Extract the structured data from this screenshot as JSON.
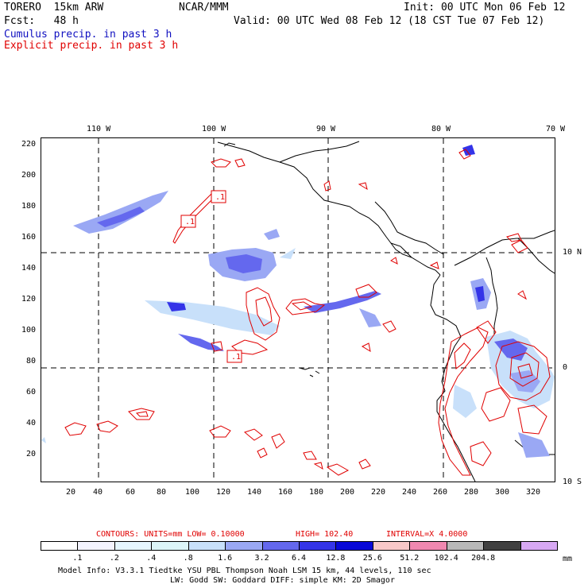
{
  "header": {
    "model": "TORERO  15km ARW",
    "org": "NCAR/MMM",
    "init": "Init: 00 UTC Mon 06 Feb 12",
    "fcst": "Fcst:   48 h",
    "valid": "Valid: 00 UTC Wed 08 Feb 12 (18 CST Tue 07 Feb 12)",
    "field1": "Cumulus precip. in past 3 h",
    "field2": "Explicit precip. in past 3 h"
  },
  "lon_labels": [
    "110 W",
    "100 W",
    "90 W",
    "80 W",
    "70 W"
  ],
  "lat_labels": [
    "10 N",
    "0",
    "10 S"
  ],
  "y_ticks": [
    "220",
    "200",
    "180",
    "160",
    "140",
    "120",
    "100",
    "80",
    "60",
    "40",
    "20"
  ],
  "x_ticks": [
    "20",
    "40",
    "60",
    "80",
    "100",
    "120",
    "140",
    "160",
    "180",
    "200",
    "220",
    "240",
    "260",
    "280",
    "300",
    "320"
  ],
  "contour_labels": [
    ".1",
    ".1",
    ".1"
  ],
  "contours_info": {
    "units": "CONTOURS:  UNITS=mm  LOW= 0.10000",
    "high": "HIGH=  102.40",
    "interval": "INTERVAL=X  4.0000"
  },
  "colorbar": {
    "labels": [
      ".1",
      ".2",
      ".4",
      ".8",
      "1.6",
      "3.2",
      "6.4",
      "12.8",
      "25.6",
      "51.2",
      "102.4",
      "204.8"
    ],
    "unit": "mm",
    "colors": [
      "#ffffff",
      "#f4f4ff",
      "#e6f6ff",
      "#dcf5f8",
      "#c8e0fa",
      "#9aa8f4",
      "#6468ee",
      "#3434e8",
      "#0808d8",
      "#f8c8c8",
      "#f088b0",
      "#b8b8b8",
      "#404040",
      "#d8a8f4"
    ]
  },
  "footer": {
    "line1": "Model Info: V3.3.1    Tiedtke YSU PBL   Thompson     Noah LSM  15 km,    44 levels,   110 sec",
    "line2": "LW: Godd SW: Goddard DIFF: simple KM: 2D Smagor"
  }
}
